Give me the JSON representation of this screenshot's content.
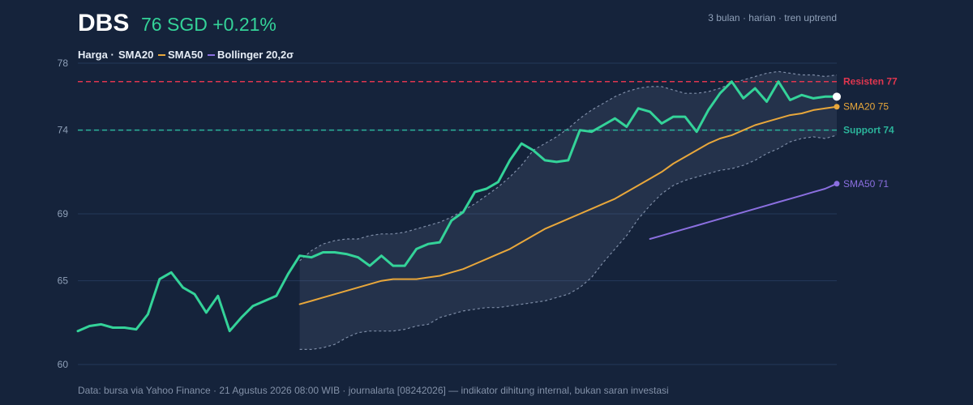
{
  "header": {
    "ticker": "DBS",
    "price": "76 SGD +0.21%",
    "meta": "3 bulan · harian · tren uptrend"
  },
  "legend": {
    "harga": "Harga ·",
    "sma20": "SMA20",
    "sma50": "SMA50",
    "bollinger": "Bollinger 20,2σ"
  },
  "footer": "Data: bursa via Yahoo Finance · 21 Agustus 2026 08:00 WIB · journalarta [08242026] — indikator dihitung internal, bukan saran investasi",
  "colors": {
    "background": "#15233b",
    "price": "#34d399",
    "sma20": "#e8a73b",
    "sma50": "#8b6fe0",
    "band": "#7d8ca6",
    "resistance": "#e0364f",
    "support": "#2bb39a"
  },
  "chart_data": {
    "type": "line",
    "ylim": [
      60,
      78
    ],
    "yticks": [
      "60",
      "65",
      "69",
      "74",
      "78"
    ],
    "n_points": 66,
    "grid": true,
    "levels": [
      {
        "name": "resistance",
        "label": "Resisten 77",
        "value": 76.9
      },
      {
        "name": "support",
        "label": "Support 74",
        "value": 74.0
      }
    ],
    "series": [
      {
        "name": "Harga",
        "start_index": 0,
        "values": [
          62.0,
          62.3,
          62.4,
          62.2,
          62.2,
          62.1,
          63.0,
          65.1,
          65.5,
          64.6,
          64.2,
          63.1,
          64.1,
          62.0,
          62.8,
          63.5,
          63.8,
          64.1,
          65.4,
          66.5,
          66.4,
          66.7,
          66.7,
          66.6,
          66.4,
          65.9,
          66.5,
          65.9,
          65.9,
          66.9,
          67.2,
          67.3,
          68.6,
          69.1,
          70.3,
          70.5,
          70.9,
          72.2,
          73.2,
          72.8,
          72.2,
          72.1,
          72.2,
          74.0,
          73.9,
          74.3,
          74.7,
          74.2,
          75.3,
          75.1,
          74.4,
          74.8,
          74.8,
          73.9,
          75.2,
          76.2,
          76.9,
          75.9,
          76.5,
          75.7,
          76.9,
          75.8,
          76.1,
          75.9,
          76.0,
          76.0
        ],
        "end_label": ""
      },
      {
        "name": "SMA20",
        "start_index": 19,
        "values": [
          63.6,
          63.8,
          64.0,
          64.2,
          64.4,
          64.6,
          64.8,
          65.0,
          65.1,
          65.1,
          65.1,
          65.2,
          65.3,
          65.5,
          65.7,
          66.0,
          66.3,
          66.6,
          66.9,
          67.3,
          67.7,
          68.1,
          68.4,
          68.7,
          69.0,
          69.3,
          69.6,
          69.9,
          70.3,
          70.7,
          71.1,
          71.5,
          72.0,
          72.4,
          72.8,
          73.2,
          73.5,
          73.7,
          74.0,
          74.3,
          74.5,
          74.7,
          74.9,
          75.0,
          75.2,
          75.3,
          75.4
        ],
        "end_label": "SMA20 75"
      },
      {
        "name": "SMA50",
        "start_index": 49,
        "values": [
          67.5,
          67.7,
          67.9,
          68.1,
          68.3,
          68.5,
          68.7,
          68.9,
          69.1,
          69.3,
          69.5,
          69.7,
          69.9,
          70.1,
          70.3,
          70.5,
          70.8
        ],
        "end_label": "SMA50 71"
      }
    ],
    "bollinger": {
      "name": "Bollinger 20,2σ",
      "start_index": 19,
      "upper": [
        66.2,
        66.8,
        67.2,
        67.4,
        67.5,
        67.5,
        67.7,
        67.8,
        67.8,
        67.9,
        68.1,
        68.3,
        68.5,
        68.8,
        69.2,
        69.6,
        70.1,
        70.6,
        71.2,
        71.9,
        72.8,
        73.2,
        73.6,
        74.1,
        74.7,
        75.2,
        75.6,
        76.0,
        76.3,
        76.5,
        76.6,
        76.6,
        76.4,
        76.2,
        76.2,
        76.3,
        76.5,
        76.8,
        77.0,
        77.2,
        77.4,
        77.5,
        77.4,
        77.3,
        77.3,
        77.2,
        77.3
      ],
      "lower": [
        60.9,
        60.9,
        61.0,
        61.2,
        61.6,
        61.9,
        62.0,
        62.0,
        62.0,
        62.1,
        62.3,
        62.4,
        62.8,
        63.0,
        63.2,
        63.3,
        63.4,
        63.4,
        63.5,
        63.6,
        63.7,
        63.8,
        64.0,
        64.2,
        64.6,
        65.2,
        66.1,
        66.9,
        67.7,
        68.7,
        69.5,
        70.2,
        70.7,
        71.0,
        71.2,
        71.4,
        71.6,
        71.7,
        71.9,
        72.2,
        72.6,
        72.9,
        73.3,
        73.5,
        73.6,
        73.5,
        73.7
      ]
    }
  }
}
